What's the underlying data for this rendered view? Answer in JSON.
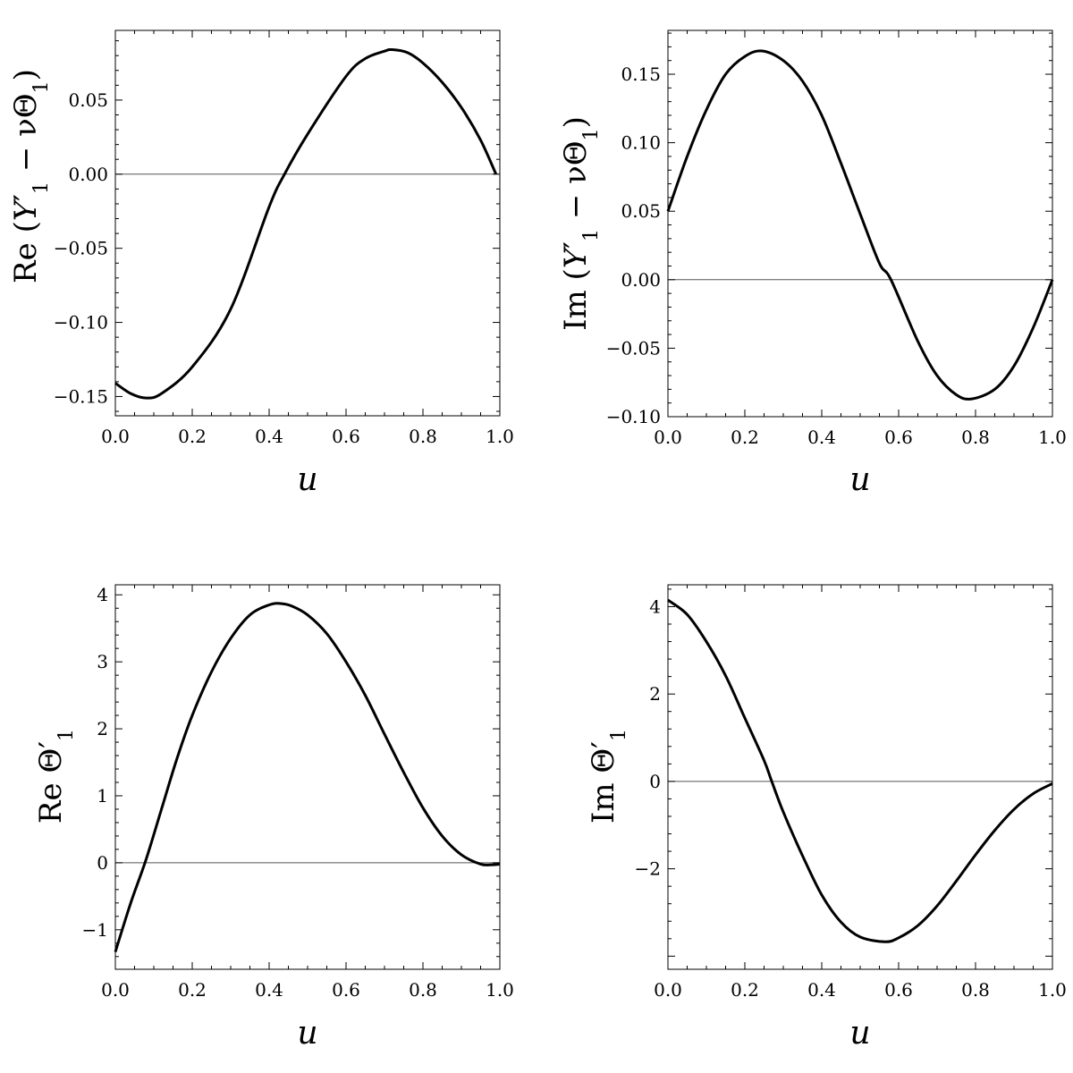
{
  "chart_data": [
    {
      "type": "line",
      "xlabel": "u",
      "ylabel": {
        "pre": "Re (",
        "Y": "Y",
        "prime": "′",
        "sub1": "1",
        "mid": " − ν",
        "Theta": "Θ",
        "sub2": "1",
        "post": ")"
      },
      "xlim": [
        0,
        1
      ],
      "ylim": [
        -0.163,
        0.097
      ],
      "xticks": [
        0.0,
        0.2,
        0.4,
        0.6,
        0.8,
        1.0
      ],
      "xtick_labels": [
        "0.0",
        "0.2",
        "0.4",
        "0.6",
        "0.8",
        "1.0"
      ],
      "yticks": [
        -0.15,
        -0.1,
        -0.05,
        0.0,
        0.05
      ],
      "ytick_labels": [
        "−0.15",
        "−0.10",
        "−0.05",
        "0.00",
        "0.05"
      ],
      "grid": false,
      "zero_line": true,
      "series": [
        {
          "x": [
            0.0,
            0.04,
            0.08,
            0.12,
            0.2,
            0.3,
            0.4,
            0.44,
            0.5,
            0.6,
            0.65,
            0.7,
            0.72,
            0.76,
            0.8,
            0.85,
            0.9,
            0.95,
            0.99
          ],
          "y": [
            -0.141,
            -0.148,
            -0.151,
            -0.148,
            -0.13,
            -0.091,
            -0.022,
            0.0,
            0.027,
            0.066,
            0.078,
            0.083,
            0.084,
            0.082,
            0.075,
            0.062,
            0.045,
            0.023,
            0.0
          ]
        }
      ]
    },
    {
      "type": "line",
      "xlabel": "u",
      "ylabel": {
        "pre": "Im (",
        "Y": "Y",
        "prime": "′",
        "sub1": "1",
        "mid": " − ν",
        "Theta": "Θ",
        "sub2": "1",
        "post": ")"
      },
      "xlim": [
        0,
        1
      ],
      "ylim": [
        -0.1,
        0.182
      ],
      "xticks": [
        0.0,
        0.2,
        0.4,
        0.6,
        0.8,
        1.0
      ],
      "xtick_labels": [
        "0.0",
        "0.2",
        "0.4",
        "0.6",
        "0.8",
        "1.0"
      ],
      "yticks": [
        -0.1,
        -0.05,
        0.0,
        0.05,
        0.1,
        0.15
      ],
      "ytick_labels": [
        "−0.10",
        "−0.05",
        "0.00",
        "0.05",
        "0.10",
        "0.15"
      ],
      "grid": false,
      "zero_line": true,
      "series": [
        {
          "x": [
            0.0,
            0.05,
            0.1,
            0.15,
            0.2,
            0.245,
            0.3,
            0.35,
            0.4,
            0.45,
            0.5,
            0.55,
            0.58,
            0.65,
            0.7,
            0.75,
            0.79,
            0.85,
            0.9,
            0.95,
            1.0
          ],
          "y": [
            0.05,
            0.09,
            0.124,
            0.15,
            0.163,
            0.167,
            0.16,
            0.145,
            0.12,
            0.085,
            0.048,
            0.012,
            0.0,
            -0.045,
            -0.07,
            -0.084,
            -0.087,
            -0.08,
            -0.063,
            -0.035,
            0.0
          ]
        }
      ]
    },
    {
      "type": "line",
      "xlabel": "u",
      "ylabel": {
        "pre": "Re ",
        "Theta": "Θ",
        "prime": "′",
        "sub": "1"
      },
      "xlim": [
        0,
        1
      ],
      "ylim": [
        -1.59,
        4.15
      ],
      "xticks": [
        0.0,
        0.2,
        0.4,
        0.6,
        0.8,
        1.0
      ],
      "xtick_labels": [
        "0.0",
        "0.2",
        "0.4",
        "0.6",
        "0.8",
        "1.0"
      ],
      "yticks": [
        -1,
        0,
        1,
        2,
        3,
        4
      ],
      "ytick_labels": [
        "−1",
        "0",
        "1",
        "2",
        "3",
        "4"
      ],
      "grid": false,
      "zero_line": true,
      "series": [
        {
          "x": [
            0.0,
            0.04,
            0.08,
            0.12,
            0.16,
            0.2,
            0.25,
            0.3,
            0.35,
            0.4,
            0.43,
            0.46,
            0.5,
            0.55,
            0.6,
            0.65,
            0.7,
            0.75,
            0.8,
            0.85,
            0.9,
            0.95,
            0.98,
            1.0
          ],
          "y": [
            -1.33,
            -0.6,
            0.05,
            0.8,
            1.55,
            2.2,
            2.85,
            3.35,
            3.7,
            3.85,
            3.87,
            3.83,
            3.7,
            3.42,
            3.0,
            2.5,
            1.92,
            1.35,
            0.82,
            0.4,
            0.12,
            -0.02,
            -0.03,
            -0.02
          ]
        }
      ]
    },
    {
      "type": "line",
      "xlabel": "u",
      "ylabel": {
        "pre": "Im ",
        "Theta": "Θ",
        "prime": "′",
        "sub": "1"
      },
      "xlim": [
        0,
        1
      ],
      "ylim": [
        -4.3,
        4.5
      ],
      "xticks": [
        0.0,
        0.2,
        0.4,
        0.6,
        0.8,
        1.0
      ],
      "xtick_labels": [
        "0.0",
        "0.2",
        "0.4",
        "0.6",
        "0.8",
        "1.0"
      ],
      "yticks": [
        -2,
        0,
        2,
        4
      ],
      "ytick_labels": [
        "−2",
        "0",
        "2",
        "4"
      ],
      "grid": false,
      "zero_line": true,
      "series": [
        {
          "x": [
            0.0,
            0.05,
            0.1,
            0.15,
            0.2,
            0.25,
            0.27,
            0.3,
            0.35,
            0.4,
            0.45,
            0.5,
            0.565,
            0.6,
            0.65,
            0.7,
            0.75,
            0.8,
            0.85,
            0.9,
            0.95,
            1.0
          ],
          "y": [
            4.15,
            3.82,
            3.2,
            2.42,
            1.45,
            0.48,
            0.0,
            -0.7,
            -1.7,
            -2.6,
            -3.22,
            -3.56,
            -3.67,
            -3.58,
            -3.3,
            -2.85,
            -2.28,
            -1.68,
            -1.12,
            -0.64,
            -0.28,
            -0.05
          ]
        }
      ]
    }
  ]
}
